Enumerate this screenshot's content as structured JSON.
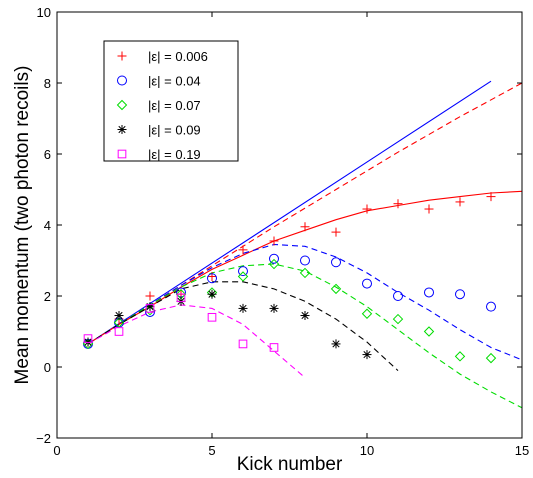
{
  "chart_data": {
    "type": "scatter",
    "xlabel": "Kick number",
    "ylabel": "Mean momentum (two photon recoils)",
    "xlim": [
      0,
      15
    ],
    "ylim": [
      -2,
      10
    ],
    "xticks": [
      0,
      5,
      10,
      15
    ],
    "yticks": [
      -2,
      0,
      2,
      4,
      6,
      8,
      10
    ],
    "xtick_labels": [
      "0",
      "5",
      "10",
      "15"
    ],
    "ytick_labels": [
      "−2",
      "0",
      "2",
      "4",
      "6",
      "8",
      "10"
    ],
    "grid": false,
    "legend_position": "top-left",
    "series": [
      {
        "name": "|ε| = 0.006",
        "marker": "plus",
        "color": "#ff0000",
        "x": [
          1,
          2,
          3,
          4,
          5,
          6,
          7,
          8,
          9,
          10,
          11,
          12,
          13,
          14
        ],
        "y": [
          0.7,
          1.35,
          2.0,
          2.05,
          2.55,
          3.3,
          3.55,
          3.95,
          3.8,
          4.45,
          4.6,
          4.45,
          4.65,
          4.8
        ]
      },
      {
        "name": "|ε| = 0.04",
        "marker": "circle",
        "color": "#0000ff",
        "x": [
          1,
          2,
          3,
          4,
          5,
          6,
          7,
          8,
          9,
          10,
          11,
          12,
          13,
          14
        ],
        "y": [
          0.65,
          1.25,
          1.55,
          2.1,
          2.5,
          2.7,
          3.05,
          3.0,
          2.95,
          2.35,
          2.0,
          2.1,
          2.05,
          1.7
        ]
      },
      {
        "name": "|ε| = 0.07",
        "marker": "diamond",
        "color": "#00dd00",
        "x": [
          1,
          2,
          3,
          4,
          5,
          6,
          7,
          8,
          9,
          10,
          11,
          12,
          13,
          14
        ],
        "y": [
          0.65,
          1.25,
          1.6,
          2.05,
          2.1,
          2.55,
          2.9,
          2.65,
          2.2,
          1.5,
          1.35,
          1.0,
          0.3,
          0.25
        ]
      },
      {
        "name": "|ε| = 0.09",
        "marker": "asterisk",
        "color": "#000000",
        "x": [
          1,
          2,
          3,
          4,
          5,
          6,
          7,
          8,
          9,
          10
        ],
        "y": [
          0.7,
          1.45,
          1.7,
          1.85,
          2.05,
          1.65,
          1.65,
          1.45,
          0.65,
          0.35
        ]
      },
      {
        "name": "|ε| = 0.19",
        "marker": "square",
        "color": "#ff00ff",
        "x": [
          1,
          2,
          3,
          4,
          5,
          6,
          7
        ],
        "y": [
          0.8,
          1.0,
          1.65,
          1.95,
          1.4,
          0.65,
          0.55
        ]
      }
    ],
    "curves": [
      {
        "color": "#0000ff",
        "style": "solid",
        "x": [
          1,
          14
        ],
        "y": [
          0.65,
          8.05
        ]
      },
      {
        "color": "#ff0000",
        "style": "solid",
        "x": [
          1,
          2,
          3,
          4,
          5,
          6,
          7,
          8,
          9,
          10,
          11,
          12,
          13,
          14,
          15
        ],
        "y": [
          0.65,
          1.2,
          1.7,
          2.25,
          2.75,
          3.15,
          3.55,
          3.85,
          4.15,
          4.4,
          4.55,
          4.7,
          4.8,
          4.9,
          4.95
        ]
      },
      {
        "color": "#ff0000",
        "style": "dashed",
        "x": [
          1,
          3,
          5,
          7,
          9,
          11,
          13,
          15
        ],
        "y": [
          0.65,
          1.75,
          2.85,
          3.95,
          5.0,
          6.05,
          7.05,
          8.0
        ]
      },
      {
        "color": "#0000ff",
        "style": "dashed",
        "x": [
          1,
          2,
          3,
          4,
          5,
          6,
          7,
          8,
          9,
          10,
          11,
          12,
          13,
          14,
          15
        ],
        "y": [
          0.65,
          1.2,
          1.75,
          2.3,
          2.8,
          3.2,
          3.45,
          3.4,
          3.1,
          2.65,
          2.1,
          1.6,
          1.05,
          0.55,
          0.2
        ]
      },
      {
        "color": "#00dd00",
        "style": "dashed",
        "x": [
          1,
          2,
          3,
          4,
          5,
          6,
          7,
          8,
          9,
          10,
          11,
          12,
          13,
          14,
          15
        ],
        "y": [
          0.65,
          1.2,
          1.75,
          2.25,
          2.65,
          2.85,
          2.9,
          2.7,
          2.25,
          1.7,
          1.05,
          0.4,
          -0.2,
          -0.7,
          -1.15
        ]
      },
      {
        "color": "#000000",
        "style": "dashed",
        "x": [
          1,
          2,
          3,
          4,
          5,
          6,
          7,
          8,
          9,
          10,
          11
        ],
        "y": [
          0.65,
          1.2,
          1.7,
          2.2,
          2.4,
          2.4,
          2.2,
          1.85,
          1.35,
          0.7,
          -0.1
        ]
      },
      {
        "color": "#ff00ff",
        "style": "dashed",
        "x": [
          1,
          2,
          3,
          4,
          5,
          6,
          7,
          8
        ],
        "y": [
          0.65,
          1.15,
          1.55,
          1.75,
          1.65,
          1.2,
          0.45,
          -0.3
        ]
      }
    ]
  }
}
